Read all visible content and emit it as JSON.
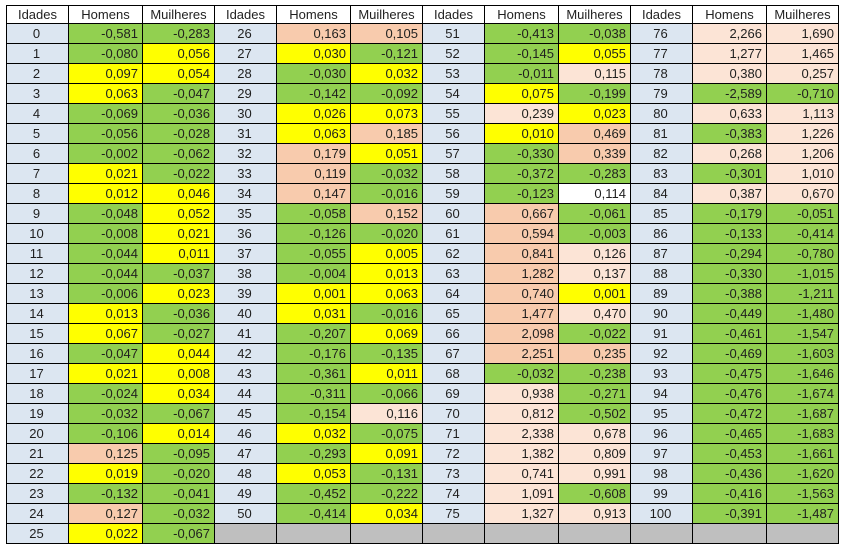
{
  "table": {
    "column_headers": [
      "Idades",
      "Homens",
      "Muilheres"
    ],
    "groups": [
      {
        "rows": [
          [
            "0",
            "-0,581",
            "g",
            "-0,283",
            "g"
          ],
          [
            "1",
            "-0,080",
            "g",
            "0,056",
            "y"
          ],
          [
            "2",
            "0,097",
            "y",
            "0,054",
            "y"
          ],
          [
            "3",
            "0,063",
            "y",
            "-0,047",
            "g"
          ],
          [
            "4",
            "-0,069",
            "g",
            "-0,036",
            "g"
          ],
          [
            "5",
            "-0,056",
            "g",
            "-0,028",
            "g"
          ],
          [
            "6",
            "-0,002",
            "g",
            "-0,062",
            "g"
          ],
          [
            "7",
            "0,021",
            "y",
            "-0,022",
            "g"
          ],
          [
            "8",
            "0,012",
            "y",
            "0,046",
            "y"
          ],
          [
            "9",
            "-0,048",
            "g",
            "0,052",
            "y"
          ],
          [
            "10",
            "-0,008",
            "g",
            "0,021",
            "y"
          ],
          [
            "11",
            "-0,044",
            "g",
            "0,011",
            "y"
          ],
          [
            "12",
            "-0,044",
            "g",
            "-0,037",
            "g"
          ],
          [
            "13",
            "-0,006",
            "g",
            "0,023",
            "y"
          ],
          [
            "14",
            "0,013",
            "y",
            "-0,036",
            "g"
          ],
          [
            "15",
            "0,067",
            "y",
            "-0,027",
            "g"
          ],
          [
            "16",
            "-0,047",
            "g",
            "0,044",
            "y"
          ],
          [
            "17",
            "0,021",
            "y",
            "0,008",
            "y"
          ],
          [
            "18",
            "-0,024",
            "g",
            "0,034",
            "y"
          ],
          [
            "19",
            "-0,032",
            "g",
            "-0,067",
            "g"
          ],
          [
            "20",
            "-0,106",
            "g",
            "0,014",
            "y"
          ],
          [
            "21",
            "0,125",
            "p",
            "-0,095",
            "g"
          ],
          [
            "22",
            "0,019",
            "y",
            "-0,020",
            "g"
          ],
          [
            "23",
            "-0,132",
            "g",
            "-0,041",
            "g"
          ],
          [
            "24",
            "0,127",
            "p",
            "-0,032",
            "g"
          ],
          [
            "25",
            "0,022",
            "y",
            "-0,067",
            "g"
          ]
        ]
      },
      {
        "rows": [
          [
            "26",
            "0,163",
            "p",
            "0,105",
            "p"
          ],
          [
            "27",
            "0,030",
            "y",
            "-0,121",
            "g"
          ],
          [
            "28",
            "-0,030",
            "g",
            "0,032",
            "y"
          ],
          [
            "29",
            "-0,142",
            "g",
            "-0,092",
            "g"
          ],
          [
            "30",
            "0,026",
            "y",
            "0,073",
            "y"
          ],
          [
            "31",
            "0,063",
            "y",
            "0,185",
            "p"
          ],
          [
            "32",
            "0,179",
            "p",
            "0,051",
            "y"
          ],
          [
            "33",
            "0,119",
            "p",
            "-0,032",
            "g"
          ],
          [
            "34",
            "0,147",
            "p",
            "-0,016",
            "g"
          ],
          [
            "35",
            "-0,058",
            "g",
            "0,152",
            "p"
          ],
          [
            "36",
            "-0,126",
            "g",
            "-0,020",
            "g"
          ],
          [
            "37",
            "-0,055",
            "g",
            "0,005",
            "y"
          ],
          [
            "38",
            "-0,004",
            "g",
            "0,013",
            "y"
          ],
          [
            "39",
            "0,001",
            "y",
            "0,063",
            "y"
          ],
          [
            "40",
            "0,031",
            "y",
            "-0,016",
            "g"
          ],
          [
            "41",
            "-0,207",
            "g",
            "0,069",
            "y"
          ],
          [
            "42",
            "-0,176",
            "g",
            "-0,135",
            "g"
          ],
          [
            "43",
            "-0,361",
            "g",
            "0,011",
            "y"
          ],
          [
            "44",
            "-0,311",
            "g",
            "-0,066",
            "g"
          ],
          [
            "45",
            "-0,154",
            "g",
            "0,116",
            "pl"
          ],
          [
            "46",
            "0,032",
            "y",
            "-0,075",
            "g"
          ],
          [
            "47",
            "-0,293",
            "g",
            "0,091",
            "y"
          ],
          [
            "48",
            "0,053",
            "y",
            "-0,131",
            "g"
          ],
          [
            "49",
            "-0,452",
            "g",
            "-0,222",
            "g"
          ],
          [
            "50",
            "-0,414",
            "g",
            "0,034",
            "y"
          ]
        ]
      },
      {
        "rows": [
          [
            "51",
            "-0,413",
            "g",
            "-0,038",
            "g"
          ],
          [
            "52",
            "-0,145",
            "g",
            "0,055",
            "y"
          ],
          [
            "53",
            "-0,011",
            "g",
            "0,115",
            "pl"
          ],
          [
            "54",
            "0,075",
            "y",
            "-0,199",
            "g"
          ],
          [
            "55",
            "0,239",
            "pl",
            "0,023",
            "y"
          ],
          [
            "56",
            "0,010",
            "y",
            "0,469",
            "p"
          ],
          [
            "57",
            "-0,330",
            "g",
            "0,339",
            "p"
          ],
          [
            "58",
            "-0,372",
            "g",
            "-0,283",
            "g"
          ],
          [
            "59",
            "-0,123",
            "g",
            "0,114",
            "w"
          ],
          [
            "60",
            "0,667",
            "p",
            "-0,061",
            "g"
          ],
          [
            "61",
            "0,594",
            "p",
            "-0,003",
            "g"
          ],
          [
            "62",
            "0,841",
            "p",
            "0,126",
            "pl"
          ],
          [
            "63",
            "1,282",
            "p",
            "0,137",
            "pl"
          ],
          [
            "64",
            "0,740",
            "p",
            "0,001",
            "y"
          ],
          [
            "65",
            "1,477",
            "p",
            "0,470",
            "pl"
          ],
          [
            "66",
            "2,098",
            "p",
            "-0,022",
            "g"
          ],
          [
            "67",
            "2,251",
            "p",
            "0,235",
            "p"
          ],
          [
            "68",
            "-0,032",
            "g",
            "-0,238",
            "g"
          ],
          [
            "69",
            "0,938",
            "pl",
            "-0,271",
            "g"
          ],
          [
            "70",
            "0,812",
            "pl",
            "-0,502",
            "g"
          ],
          [
            "71",
            "2,338",
            "pl",
            "0,678",
            "pl"
          ],
          [
            "72",
            "1,382",
            "pl",
            "0,809",
            "pl"
          ],
          [
            "73",
            "0,741",
            "pl",
            "0,991",
            "pl"
          ],
          [
            "74",
            "1,091",
            "pl",
            "-0,608",
            "g"
          ],
          [
            "75",
            "1,327",
            "pl",
            "0,913",
            "pl"
          ]
        ]
      },
      {
        "rows": [
          [
            "76",
            "2,266",
            "pl",
            "1,690",
            "pl"
          ],
          [
            "77",
            "1,277",
            "pl",
            "1,465",
            "pl"
          ],
          [
            "78",
            "0,380",
            "pl",
            "0,257",
            "pl"
          ],
          [
            "79",
            "-2,589",
            "g",
            "-0,710",
            "g"
          ],
          [
            "80",
            "0,633",
            "pl",
            "1,113",
            "pl"
          ],
          [
            "81",
            "-0,383",
            "g",
            "1,226",
            "pl"
          ],
          [
            "82",
            "0,268",
            "pl",
            "1,206",
            "pl"
          ],
          [
            "83",
            "-0,301",
            "g",
            "1,010",
            "pl"
          ],
          [
            "84",
            "0,387",
            "pl",
            "0,670",
            "pl"
          ],
          [
            "85",
            "-0,179",
            "g",
            "-0,051",
            "g"
          ],
          [
            "86",
            "-0,133",
            "g",
            "-0,414",
            "g"
          ],
          [
            "87",
            "-0,294",
            "g",
            "-0,780",
            "g"
          ],
          [
            "88",
            "-0,330",
            "g",
            "-1,015",
            "g"
          ],
          [
            "89",
            "-0,388",
            "g",
            "-1,211",
            "g"
          ],
          [
            "90",
            "-0,449",
            "g",
            "-1,480",
            "g"
          ],
          [
            "91",
            "-0,461",
            "g",
            "-1,547",
            "g"
          ],
          [
            "92",
            "-0,469",
            "g",
            "-1,603",
            "g"
          ],
          [
            "93",
            "-0,475",
            "g",
            "-1,646",
            "g"
          ],
          [
            "94",
            "-0,476",
            "g",
            "-1,674",
            "g"
          ],
          [
            "95",
            "-0,472",
            "g",
            "-1,687",
            "g"
          ],
          [
            "96",
            "-0,465",
            "g",
            "-1,683",
            "g"
          ],
          [
            "97",
            "-0,453",
            "g",
            "-1,661",
            "g"
          ],
          [
            "98",
            "-0,436",
            "g",
            "-1,620",
            "g"
          ],
          [
            "99",
            "-0,416",
            "g",
            "-1,563",
            "g"
          ],
          [
            "100",
            "-0,391",
            "g",
            "-1,487",
            "g"
          ]
        ]
      }
    ]
  },
  "colors": {
    "green": "#92d050",
    "yellow": "#ffff00",
    "peach": "#f8cbad",
    "peach_light": "#fce4d6",
    "white": "#ffffff",
    "age_column": "#dce6f1",
    "empty_gray": "#bfbfbf",
    "header_bg": "#ffffff",
    "border": "#000000"
  }
}
